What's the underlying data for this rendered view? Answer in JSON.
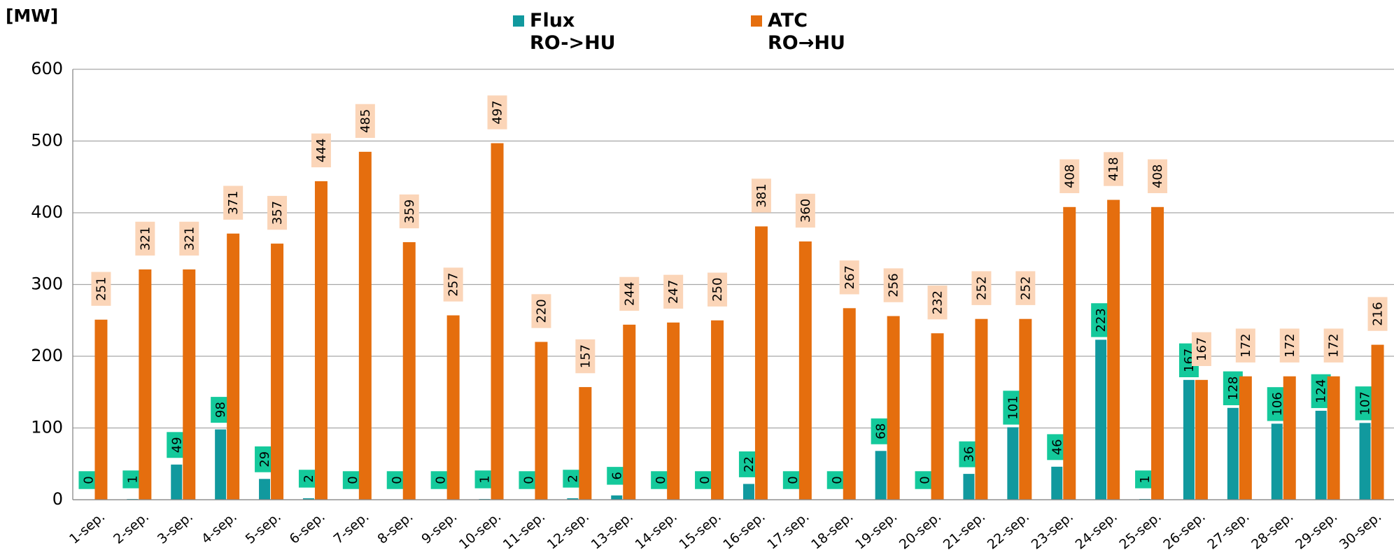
{
  "chart_data": {
    "type": "bar",
    "y_label": "[MW]",
    "categories": [
      "1-sep.",
      "2-sep.",
      "3-sep.",
      "4-sep.",
      "5-sep.",
      "6-sep.",
      "7-sep.",
      "8-sep.",
      "9-sep.",
      "10-sep.",
      "11-sep.",
      "12-sep.",
      "13-sep.",
      "14-sep.",
      "15-sep.",
      "16-sep.",
      "17-sep.",
      "18-sep.",
      "19-sep.",
      "20-sep.",
      "21-sep.",
      "22-sep.",
      "23-sep.",
      "24-sep.",
      "25-sep.",
      "26-sep.",
      "27-sep.",
      "28-sep.",
      "29-sep.",
      "30-sep."
    ],
    "series": [
      {
        "name": "Flux\nRO->HU",
        "color": "#11999e",
        "label_color": "#14c99b",
        "values": [
          0,
          1,
          49,
          98,
          29,
          2,
          0,
          0,
          0,
          1,
          0,
          2,
          6,
          0,
          0,
          22,
          0,
          0,
          68,
          0,
          36,
          101,
          46,
          223,
          1,
          167,
          128,
          106,
          124,
          107
        ]
      },
      {
        "name": "ATC\nRO→HU",
        "color": "#e56e0e",
        "label_color": "#fbd5b8",
        "values": [
          251,
          321,
          321,
          371,
          357,
          444,
          485,
          359,
          257,
          497,
          220,
          157,
          244,
          247,
          250,
          381,
          360,
          267,
          256,
          232,
          252,
          252,
          408,
          418,
          408,
          167,
          172,
          172,
          172,
          216
        ]
      }
    ],
    "ylim": [
      0,
      600
    ],
    "yticks": [
      0,
      100,
      200,
      300,
      400,
      500,
      600
    ],
    "grid": true
  }
}
